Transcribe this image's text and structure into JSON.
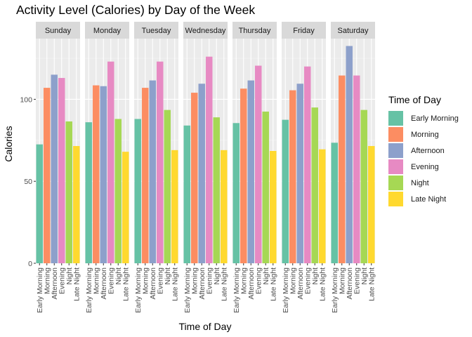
{
  "chart_data": {
    "type": "bar",
    "title": "Activity Level (Calories) by Day of the Week",
    "xlabel": "Time of Day",
    "ylabel": "Calories",
    "ylim": [
      0,
      137
    ],
    "yticks": [
      0,
      50,
      100
    ],
    "facets": [
      "Sunday",
      "Monday",
      "Tuesday",
      "Wednesday",
      "Thursday",
      "Friday",
      "Saturday"
    ],
    "categories": [
      "Early Morning",
      "Morning",
      "Afternoon",
      "Evening",
      "Night",
      "Late Night"
    ],
    "colors": [
      "#66c2a5",
      "#fc8d62",
      "#8da0cb",
      "#e78ac3",
      "#a6d854",
      "#ffd92f"
    ],
    "values": {
      "Sunday": [
        72.5,
        107,
        115,
        113,
        86.5,
        71.5
      ],
      "Monday": [
        86,
        108.5,
        108,
        123,
        88,
        68
      ],
      "Tuesday": [
        88,
        107,
        111.5,
        123,
        93.5,
        69
      ],
      "Wednesday": [
        84,
        104,
        109.5,
        126,
        89,
        69
      ],
      "Thursday": [
        85.5,
        106.5,
        111.5,
        120.5,
        92.5,
        68.5
      ],
      "Friday": [
        87.5,
        105.5,
        109.5,
        120,
        95,
        69.5
      ],
      "Saturday": [
        73.5,
        114.5,
        132.5,
        114.5,
        93.5,
        71.5
      ]
    },
    "grid": true,
    "legend_position": "right"
  },
  "legend": {
    "title": "Time of Day",
    "items": [
      "Early Morning",
      "Morning",
      "Afternoon",
      "Evening",
      "Night",
      "Late Night"
    ]
  }
}
